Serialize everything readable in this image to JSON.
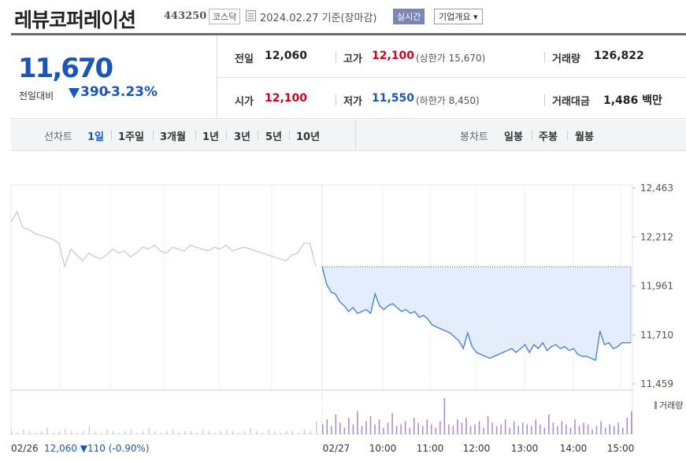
{
  "header": {
    "title": "레뷰코퍼레이션",
    "code": "443250",
    "market": "코스닥",
    "date": "2024.02.27 기준(장마감)",
    "realtime_label": "실시간",
    "company_label": "기업개요 ▾"
  },
  "quote": {
    "price": "11,670",
    "change_label": "전일대비",
    "change_value": "390",
    "change_rate": "-3.23%",
    "prev_close_label": "전일",
    "prev_close": "12,060",
    "high_label": "고가",
    "high": "12,100",
    "upper_limit": "(상한가 15,670)",
    "volume_label": "거래량",
    "volume": "126,822",
    "open_label": "시가",
    "open": "12,100",
    "low_label": "저가",
    "low": "11,550",
    "lower_limit": "(하한가 8,450)",
    "value_label": "거래대금",
    "value": "1,486 백만"
  },
  "tabs": {
    "line_chart_label": "선차트",
    "periods": [
      "1일",
      "1주일",
      "3개월",
      "1년",
      "3년",
      "5년",
      "10년"
    ],
    "active_period": "1일",
    "candle_chart_label": "봉차트",
    "candles": [
      "일봉",
      "주봉",
      "월봉"
    ]
  },
  "colors": {
    "rise": "#d0021b",
    "fall": "#1a56b8",
    "line_prev": "#c8c8c8",
    "line_today": "#4a84d6",
    "fill_today": "#e3edfb",
    "volume": "#a58ac8"
  },
  "chart_data": {
    "type": "line",
    "y_ticks": [
      "12,463",
      "12,212",
      "11,961",
      "11,710",
      "11,459"
    ],
    "ylim": [
      11459,
      12463
    ],
    "x_ticks": [
      "10:00",
      "11:00",
      "12:00",
      "13:00",
      "14:00",
      "15:00"
    ],
    "prev_day_label": "02/26",
    "prev_day_info": "12,060 ▼110 (-0.90%)",
    "today_label": "02/27",
    "volume_legend": "거래량",
    "reference_price": 12060,
    "series": [
      {
        "values": [
          12290,
          12340,
          12260,
          12250,
          12230,
          12220,
          12210,
          12200,
          12180,
          12060,
          12150,
          12120,
          12090,
          12130,
          12110,
          12100,
          12120,
          12150,
          12130,
          12140,
          12110,
          12130,
          12160,
          12150,
          12170,
          12140,
          12130,
          12160,
          12150,
          12140,
          12170,
          12160,
          12150,
          12140,
          12160,
          12150,
          12170,
          12140,
          12150,
          12160,
          12150,
          12140,
          12130,
          12120,
          12110,
          12100,
          12090,
          12120,
          12130,
          12180,
          12180,
          12060
        ]
      },
      {
        "values": [
          12060,
          11970,
          11930,
          11920,
          11880,
          11860,
          11830,
          11850,
          11820,
          11830,
          11840,
          11820,
          11920,
          11860,
          11840,
          11860,
          11870,
          11850,
          11830,
          11840,
          11820,
          11830,
          11800,
          11810,
          11790,
          11760,
          11750,
          11740,
          11730,
          11720,
          11700,
          11680,
          11640,
          11720,
          11650,
          11620,
          11610,
          11600,
          11590,
          11600,
          11610,
          11620,
          11630,
          11640,
          11620,
          11640,
          11660,
          11620,
          11660,
          11640,
          11670,
          11630,
          11650,
          11660,
          11640,
          11650,
          11630,
          11640,
          11610,
          11600,
          11600,
          11590,
          11580,
          11730,
          11660,
          11670,
          11640,
          11650,
          11670,
          11670,
          11670
        ]
      }
    ],
    "volumes": [
      2,
      1,
      3,
      2,
      1,
      2,
      4,
      1,
      2,
      3,
      2,
      1,
      2,
      5,
      2,
      1,
      3,
      2,
      1,
      2,
      3,
      1,
      2,
      4,
      2,
      1,
      2,
      3,
      1,
      2,
      2,
      1,
      3,
      2,
      1,
      2,
      3,
      2,
      1,
      2,
      4,
      2,
      1,
      3,
      2,
      1,
      2,
      2,
      1,
      3,
      2,
      8,
      6,
      9,
      5,
      12,
      7,
      4,
      10,
      6,
      14,
      5,
      8,
      11,
      6,
      9,
      4,
      7,
      13,
      5,
      6,
      8,
      4,
      10,
      7,
      5,
      9,
      6,
      4,
      8,
      22,
      6,
      5,
      9,
      7,
      10,
      5,
      6,
      8,
      4,
      11,
      7,
      5,
      6,
      9,
      4,
      8,
      5,
      7,
      6,
      5,
      9,
      6,
      4,
      12,
      7,
      5,
      8,
      6,
      4,
      9,
      5,
      7,
      6,
      3,
      5,
      8,
      4,
      6,
      5,
      7,
      4,
      10,
      14
    ]
  }
}
